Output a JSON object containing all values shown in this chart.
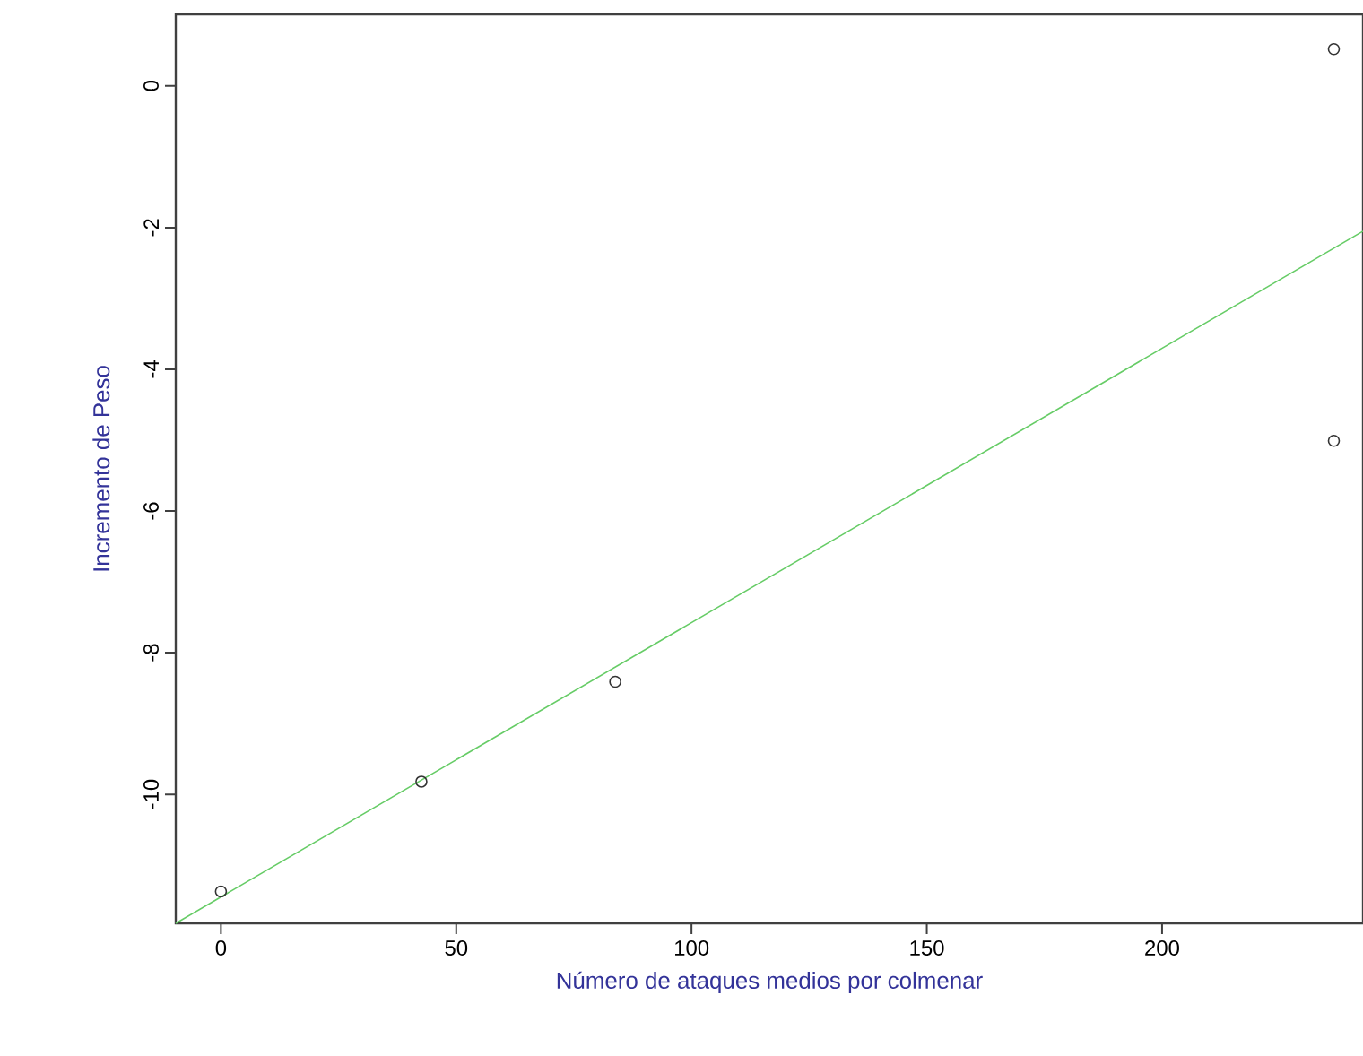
{
  "chart_data": {
    "type": "scatter",
    "xlabel": "Número de ataques medios por colmenar",
    "ylabel": "Incremento de Peso",
    "xlim": [
      -9.6,
      242.7
    ],
    "ylim": [
      -11.82,
      1.01
    ],
    "xticks": [
      0,
      50,
      100,
      150,
      200
    ],
    "yticks": [
      0,
      -2,
      -4,
      -6,
      -8,
      -10
    ],
    "series": [
      {
        "color": "#333333",
        "marker": "circle",
        "x": [
          0,
          42.6,
          83.8,
          236.5,
          236.5
        ],
        "values": [
          -11.37,
          -9.82,
          -8.41,
          0.52,
          -5.01
        ]
      },
      {
        "type": "line",
        "color": "#66cc66",
        "marker": "none",
        "line_style": "solid",
        "x": [
          -9.6,
          242.7
        ],
        "values": [
          -11.82,
          -2.05
        ]
      }
    ]
  }
}
